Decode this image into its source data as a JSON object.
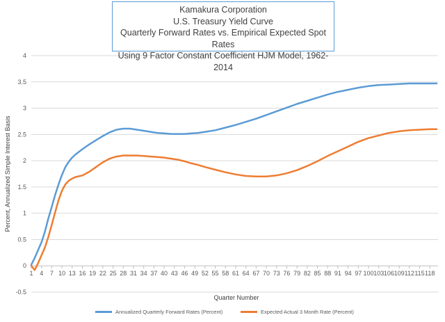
{
  "title": {
    "line1": "Kamakura Corporation",
    "line2": "U.S. Treasury Yield Curve",
    "line3": "Quarterly Forward Rates vs. Empirical Expected Spot Rates",
    "line4": "Using 9 Factor Constant Coefficient HJM Model, 1962-2014"
  },
  "colors": {
    "series1": "#5b9bd5",
    "series2": "#ed7d31",
    "grid": "#d9d9d9",
    "axis": "#bfbfbf"
  },
  "chart_data": {
    "type": "line",
    "title": "Kamakura Corporation / U.S. Treasury Yield Curve / Quarterly Forward Rates vs. Empirical Expected Spot Rates / Using 9 Factor Constant Coefficient HJM Model, 1962-2014",
    "xlabel": "Quarter Number",
    "ylabel": "Percent, Annualized Simple Interest Basis",
    "ylim": [
      -0.5,
      4
    ],
    "yticks": [
      -0.5,
      0,
      0.5,
      1,
      1.5,
      2,
      2.5,
      3,
      3.5,
      4
    ],
    "xlim": [
      1,
      120
    ],
    "xticks": [
      1,
      4,
      7,
      10,
      13,
      16,
      19,
      22,
      25,
      28,
      31,
      34,
      37,
      40,
      43,
      46,
      49,
      52,
      55,
      58,
      61,
      64,
      67,
      70,
      73,
      76,
      79,
      82,
      85,
      88,
      91,
      94,
      97,
      100,
      103,
      106,
      109,
      112,
      115,
      118
    ],
    "grid": true,
    "legend": "bottom",
    "series": [
      {
        "name": "Annualized Quarterly Forward Rates (Percent)",
        "x": [
          1,
          2,
          3,
          4,
          5,
          6,
          7,
          8,
          9,
          10,
          11,
          12,
          13,
          14,
          16,
          18,
          20,
          22,
          24,
          26,
          28,
          30,
          32,
          34,
          36,
          38,
          40,
          42,
          44,
          46,
          48,
          50,
          52,
          55,
          58,
          61,
          64,
          67,
          70,
          73,
          76,
          79,
          82,
          85,
          88,
          91,
          94,
          97,
          100,
          103,
          106,
          109,
          112,
          115,
          118,
          120
        ],
        "y": [
          0.02,
          0.15,
          0.3,
          0.45,
          0.65,
          0.9,
          1.12,
          1.35,
          1.55,
          1.73,
          1.88,
          1.98,
          2.06,
          2.12,
          2.22,
          2.31,
          2.39,
          2.47,
          2.54,
          2.59,
          2.61,
          2.61,
          2.59,
          2.57,
          2.55,
          2.53,
          2.52,
          2.51,
          2.51,
          2.51,
          2.52,
          2.53,
          2.55,
          2.58,
          2.63,
          2.68,
          2.74,
          2.8,
          2.87,
          2.94,
          3.01,
          3.08,
          3.14,
          3.2,
          3.26,
          3.31,
          3.35,
          3.39,
          3.42,
          3.44,
          3.45,
          3.46,
          3.47,
          3.47,
          3.47,
          3.47
        ]
      },
      {
        "name": "Expected Actual 3 Month Rate (Percent)",
        "x": [
          1,
          2,
          3,
          4,
          5,
          6,
          7,
          8,
          9,
          10,
          11,
          12,
          13,
          14,
          16,
          18,
          20,
          22,
          24,
          26,
          28,
          30,
          32,
          34,
          36,
          38,
          40,
          42,
          44,
          46,
          48,
          50,
          52,
          55,
          58,
          61,
          64,
          67,
          70,
          73,
          76,
          79,
          82,
          85,
          88,
          91,
          94,
          97,
          100,
          103,
          106,
          109,
          112,
          115,
          118,
          120
        ],
        "y": [
          0.0,
          -0.08,
          0.05,
          0.2,
          0.35,
          0.55,
          0.78,
          1.02,
          1.25,
          1.43,
          1.55,
          1.62,
          1.66,
          1.69,
          1.72,
          1.79,
          1.88,
          1.97,
          2.04,
          2.08,
          2.1,
          2.1,
          2.1,
          2.09,
          2.08,
          2.07,
          2.06,
          2.04,
          2.02,
          1.99,
          1.95,
          1.92,
          1.88,
          1.83,
          1.78,
          1.74,
          1.71,
          1.7,
          1.7,
          1.72,
          1.76,
          1.82,
          1.9,
          1.99,
          2.09,
          2.18,
          2.27,
          2.36,
          2.43,
          2.48,
          2.53,
          2.56,
          2.58,
          2.59,
          2.6,
          2.6
        ]
      }
    ]
  }
}
